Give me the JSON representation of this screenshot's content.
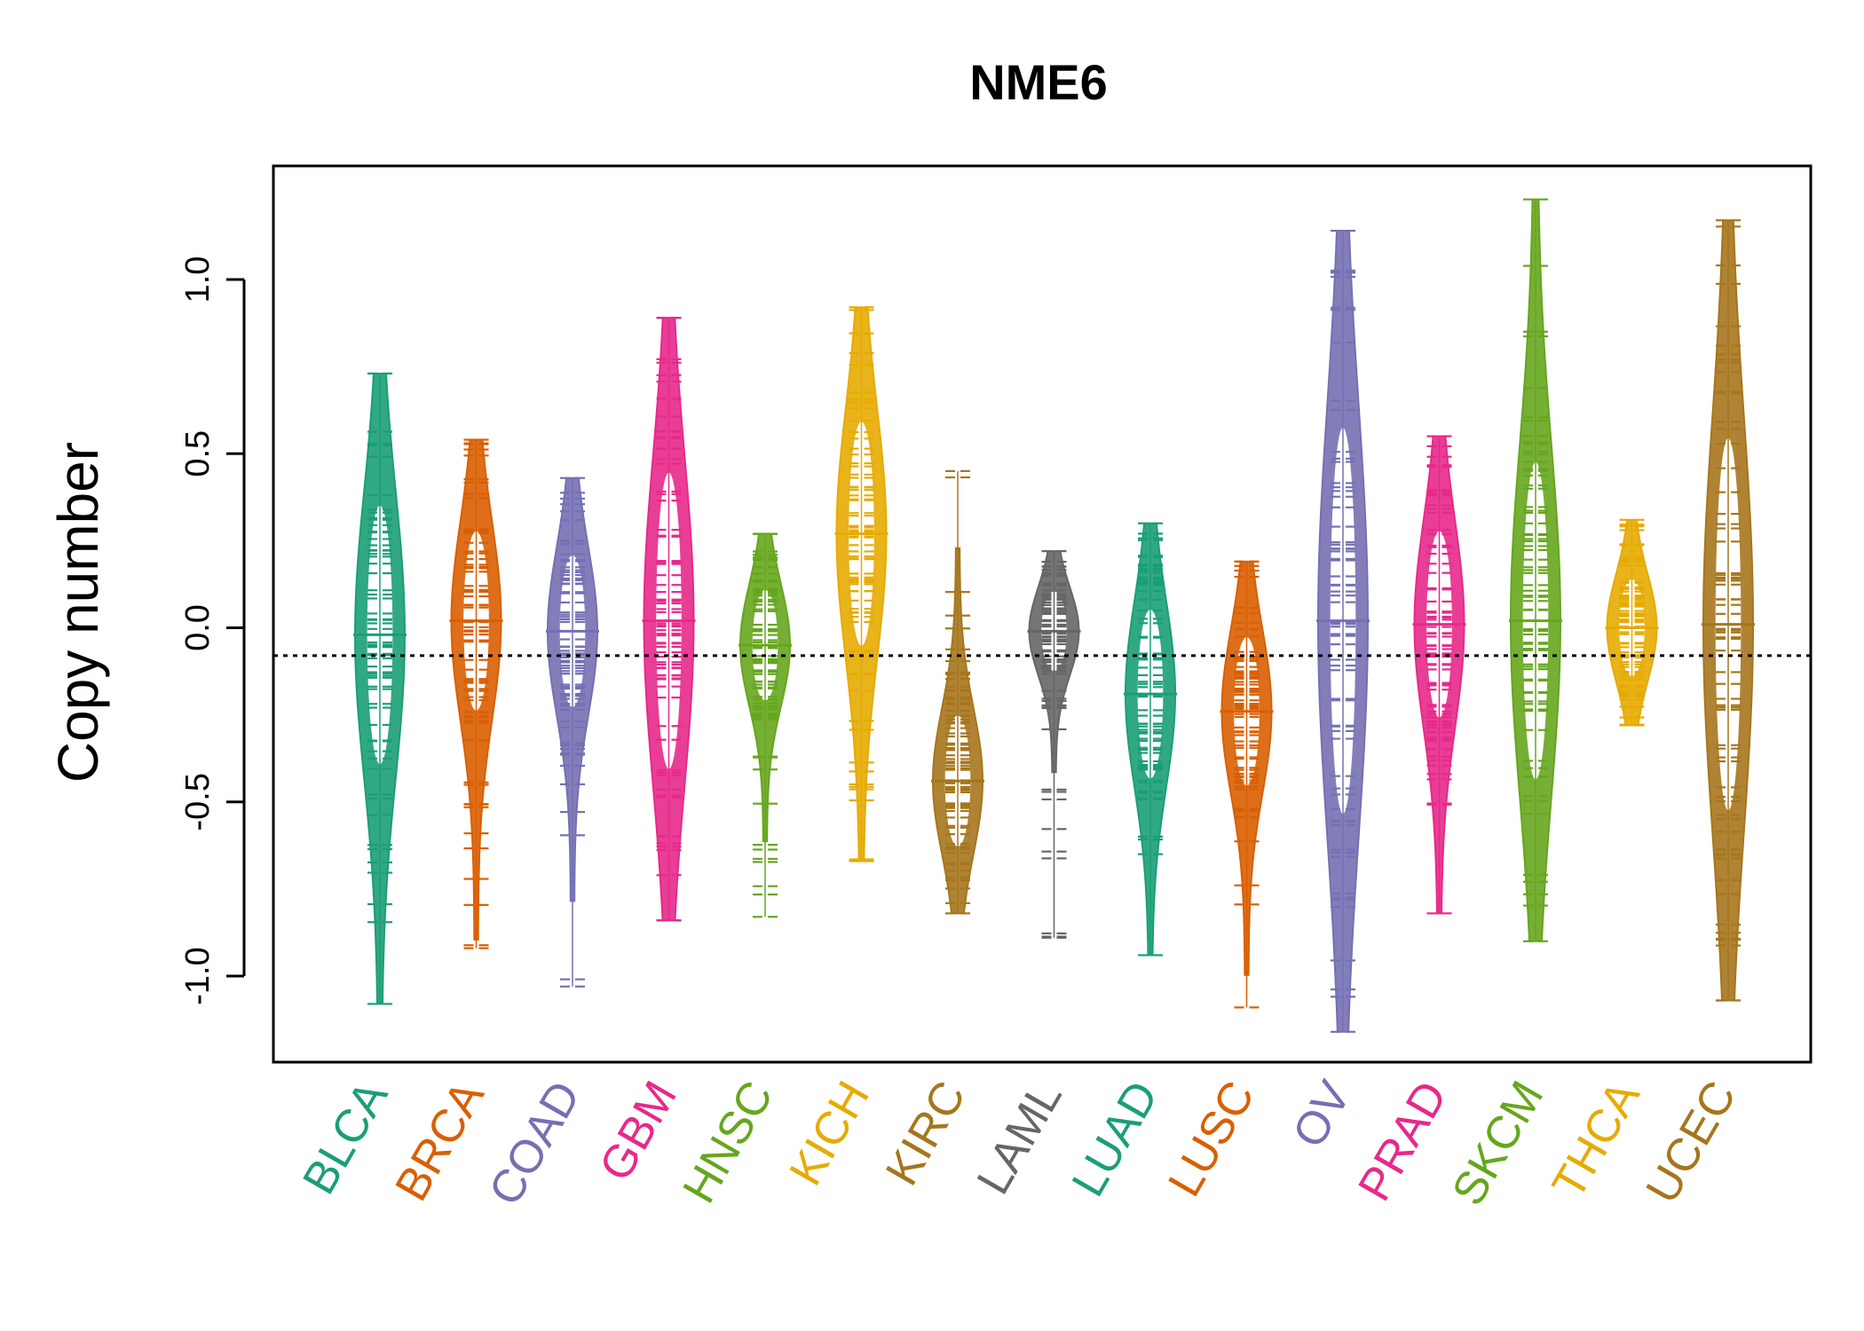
{
  "chart_data": {
    "type": "beanplot",
    "title": "NME6",
    "xlabel": "",
    "ylabel": "Copy number",
    "ylim": [
      -1.25,
      1.3
    ],
    "yticks": [
      -1.0,
      -0.5,
      0.0,
      0.5,
      1.0
    ],
    "ytick_labels": [
      "-1.0",
      "-0.5",
      "0.0",
      "0.5",
      "1.0"
    ],
    "reference_line": -0.08,
    "grid": false,
    "series": [
      {
        "category": "BLCA",
        "color": "#1B9E77",
        "min": -1.08,
        "max": 0.73,
        "median": -0.02
      },
      {
        "category": "BRCA",
        "color": "#D95F02",
        "min": -0.92,
        "max": 0.54,
        "median": 0.02
      },
      {
        "category": "COAD",
        "color": "#7570B3",
        "min": -1.03,
        "max": 0.43,
        "median": -0.01
      },
      {
        "category": "GBM",
        "color": "#E7298A",
        "min": -0.84,
        "max": 0.89,
        "median": 0.02
      },
      {
        "category": "HNSC",
        "color": "#66A61E",
        "min": -0.83,
        "max": 0.27,
        "median": -0.05
      },
      {
        "category": "KICH",
        "color": "#E6AB02",
        "min": -0.67,
        "max": 0.92,
        "median": 0.27
      },
      {
        "category": "KIRC",
        "color": "#A6761D",
        "min": -0.82,
        "max": 0.45,
        "median": -0.44
      },
      {
        "category": "LAML",
        "color": "#666666",
        "min": -0.89,
        "max": 0.22,
        "median": -0.01
      },
      {
        "category": "LUAD",
        "color": "#1B9E77",
        "min": -0.94,
        "max": 0.3,
        "median": -0.19
      },
      {
        "category": "LUSC",
        "color": "#D95F02",
        "min": -1.09,
        "max": 0.19,
        "median": -0.24
      },
      {
        "category": "OV",
        "color": "#7570B3",
        "min": -1.16,
        "max": 1.14,
        "median": 0.02
      },
      {
        "category": "PRAD",
        "color": "#E7298A",
        "min": -0.82,
        "max": 0.55,
        "median": 0.01
      },
      {
        "category": "SKCM",
        "color": "#66A61E",
        "min": -0.9,
        "max": 1.23,
        "median": 0.02
      },
      {
        "category": "THCA",
        "color": "#E6AB02",
        "min": -0.28,
        "max": 0.31,
        "median": 0.0
      },
      {
        "category": "UCEC",
        "color": "#A6761D",
        "min": -1.07,
        "max": 1.17,
        "median": 0.01
      }
    ]
  }
}
